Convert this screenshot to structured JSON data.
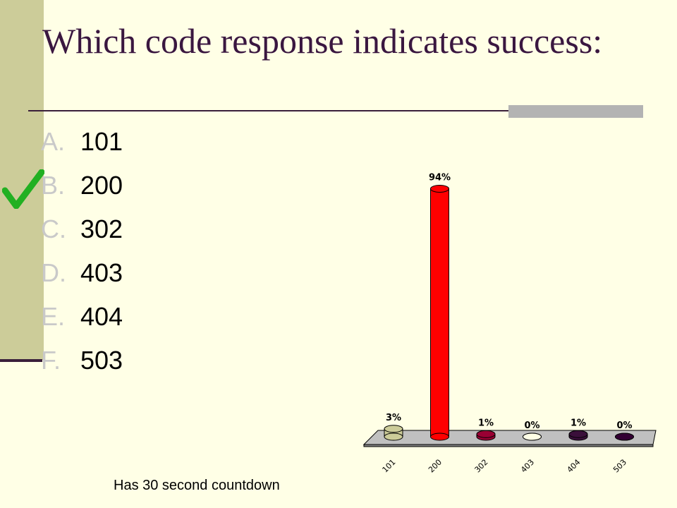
{
  "title": "Which code response indicates success:",
  "options": [
    {
      "letter": "A.",
      "value": "101"
    },
    {
      "letter": "B.",
      "value": "200"
    },
    {
      "letter": "C.",
      "value": "302"
    },
    {
      "letter": "D.",
      "value": "403"
    },
    {
      "letter": "E.",
      "value": "404"
    },
    {
      "letter": "F.",
      "value": "503"
    }
  ],
  "correct_option_index": 1,
  "footer_note": "Has 30 second countdown",
  "colors": {
    "background": "#FFFFE6",
    "accent_band": "#CCCC99",
    "title_text": "#3A1740",
    "rule": "#3A1F3A",
    "checkmark": "#22B022"
  },
  "chart_data": {
    "type": "bar",
    "categories": [
      "101",
      "200",
      "302",
      "403",
      "404",
      "503"
    ],
    "values": [
      3,
      94,
      1,
      0,
      1,
      0
    ],
    "data_labels": [
      "3%",
      "94%",
      "1%",
      "0%",
      "1%",
      "0%"
    ],
    "colors": [
      "#CCCC99",
      "#FF0000",
      "#990033",
      "#FFFFE6",
      "#3A0F3A",
      "#330033"
    ],
    "ylim": [
      0,
      100
    ],
    "grid": false,
    "legend": "none",
    "title": "",
    "xlabel": "",
    "ylabel": ""
  }
}
